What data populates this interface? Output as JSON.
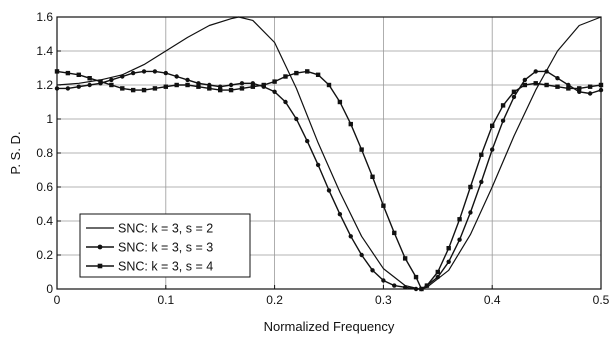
{
  "chart_data": {
    "type": "line",
    "xlabel": "Normalized Frequency",
    "ylabel": "P. S. D.",
    "xlim": [
      0,
      0.5
    ],
    "ylim": [
      0,
      1.6
    ],
    "x_ticks": [
      0,
      0.1,
      0.2,
      0.3,
      0.4,
      0.5
    ],
    "x_tick_labels": [
      "0",
      "0.1",
      "0.2",
      "0.3",
      "0.4",
      "0.5"
    ],
    "y_ticks": [
      0,
      0.2,
      0.4,
      0.6,
      0.8,
      1,
      1.2,
      1.4,
      1.6
    ],
    "y_tick_labels": [
      "0",
      "0.2",
      "0.4",
      "0.6",
      "0.8",
      "1",
      "1.2",
      "1.4",
      "1.6"
    ],
    "grid": true,
    "legend_position": "bottom-left",
    "series": [
      {
        "name": "SNC: k = 3, s = 2",
        "marker": "none",
        "x": [
          0,
          0.02,
          0.04,
          0.06,
          0.08,
          0.1,
          0.12,
          0.14,
          0.16,
          0.167,
          0.18,
          0.2,
          0.22,
          0.24,
          0.26,
          0.28,
          0.3,
          0.32,
          0.333,
          0.34,
          0.36,
          0.38,
          0.4,
          0.42,
          0.44,
          0.46,
          0.48,
          0.5
        ],
        "y": [
          1.2,
          1.21,
          1.23,
          1.26,
          1.32,
          1.4,
          1.48,
          1.55,
          1.59,
          1.6,
          1.58,
          1.45,
          1.18,
          0.86,
          0.57,
          0.31,
          0.12,
          0.02,
          0.0,
          0.01,
          0.11,
          0.32,
          0.6,
          0.9,
          1.17,
          1.4,
          1.55,
          1.6
        ]
      },
      {
        "name": "SNC: k = 3, s = 3",
        "marker": "circle",
        "x": [
          0,
          0.01,
          0.02,
          0.03,
          0.04,
          0.05,
          0.06,
          0.07,
          0.08,
          0.09,
          0.1,
          0.11,
          0.12,
          0.13,
          0.14,
          0.15,
          0.16,
          0.17,
          0.18,
          0.19,
          0.2,
          0.21,
          0.22,
          0.23,
          0.24,
          0.25,
          0.26,
          0.27,
          0.28,
          0.29,
          0.3,
          0.31,
          0.32,
          0.33,
          0.335,
          0.34,
          0.35,
          0.36,
          0.37,
          0.38,
          0.39,
          0.4,
          0.41,
          0.42,
          0.43,
          0.44,
          0.45,
          0.46,
          0.47,
          0.48,
          0.49,
          0.5
        ],
        "y": [
          1.18,
          1.18,
          1.19,
          1.2,
          1.21,
          1.23,
          1.25,
          1.27,
          1.28,
          1.28,
          1.27,
          1.25,
          1.23,
          1.21,
          1.2,
          1.19,
          1.2,
          1.21,
          1.21,
          1.19,
          1.16,
          1.1,
          1.0,
          0.87,
          0.73,
          0.58,
          0.44,
          0.31,
          0.2,
          0.11,
          0.05,
          0.02,
          0.01,
          0.0,
          0.0,
          0.02,
          0.07,
          0.16,
          0.29,
          0.45,
          0.63,
          0.82,
          0.99,
          1.13,
          1.23,
          1.28,
          1.28,
          1.24,
          1.2,
          1.16,
          1.15,
          1.17
        ]
      },
      {
        "name": "SNC: k = 3, s = 4",
        "marker": "square",
        "x": [
          0,
          0.01,
          0.02,
          0.03,
          0.04,
          0.05,
          0.06,
          0.07,
          0.08,
          0.09,
          0.1,
          0.11,
          0.12,
          0.13,
          0.14,
          0.15,
          0.16,
          0.17,
          0.18,
          0.19,
          0.2,
          0.21,
          0.22,
          0.23,
          0.24,
          0.25,
          0.26,
          0.27,
          0.28,
          0.29,
          0.3,
          0.31,
          0.32,
          0.33,
          0.335,
          0.34,
          0.35,
          0.36,
          0.37,
          0.38,
          0.39,
          0.4,
          0.41,
          0.42,
          0.43,
          0.44,
          0.45,
          0.46,
          0.47,
          0.48,
          0.49,
          0.5
        ],
        "y": [
          1.28,
          1.27,
          1.26,
          1.24,
          1.22,
          1.2,
          1.18,
          1.17,
          1.17,
          1.18,
          1.19,
          1.2,
          1.2,
          1.19,
          1.18,
          1.17,
          1.17,
          1.18,
          1.19,
          1.2,
          1.22,
          1.25,
          1.27,
          1.28,
          1.26,
          1.2,
          1.1,
          0.97,
          0.82,
          0.66,
          0.49,
          0.33,
          0.18,
          0.07,
          0.0,
          0.02,
          0.1,
          0.24,
          0.41,
          0.6,
          0.79,
          0.96,
          1.08,
          1.16,
          1.2,
          1.21,
          1.2,
          1.19,
          1.18,
          1.18,
          1.19,
          1.2
        ]
      }
    ]
  }
}
